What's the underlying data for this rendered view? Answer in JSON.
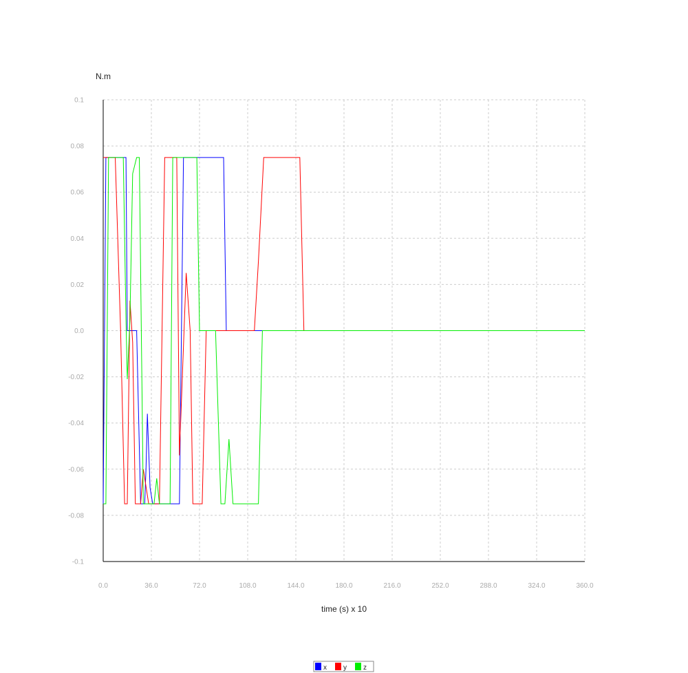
{
  "chart_data": {
    "type": "line",
    "title": "",
    "xlabel": "time (s) x 10",
    "ylabel": "N.m",
    "xlim": [
      0,
      360
    ],
    "ylim": [
      -0.1,
      0.1
    ],
    "x_ticks": [
      "0.0",
      "36.0",
      "72.0",
      "108.0",
      "144.0",
      "180.0",
      "216.0",
      "252.0",
      "288.0",
      "324.0",
      "360.0"
    ],
    "y_ticks": [
      "0.1",
      "0.08",
      "0.06",
      "0.04",
      "0.02",
      "0.0",
      "-0.02",
      "-0.04",
      "-0.06",
      "-0.08",
      "-0.1"
    ],
    "grid": true,
    "legend_position": "bottom-center",
    "series": [
      {
        "name": "x",
        "color": "#0000ff",
        "points": [
          [
            0,
            -0.075
          ],
          [
            2,
            0.075
          ],
          [
            17,
            0.075
          ],
          [
            18,
            0
          ],
          [
            25,
            0
          ],
          [
            28,
            -0.075
          ],
          [
            31,
            -0.075
          ],
          [
            32,
            -0.06
          ],
          [
            33,
            -0.036
          ],
          [
            35,
            -0.068
          ],
          [
            37,
            -0.075
          ],
          [
            57,
            -0.075
          ],
          [
            60,
            0.075
          ],
          [
            90,
            0.075
          ],
          [
            92,
            0
          ],
          [
            113,
            0
          ],
          [
            115,
            0
          ],
          [
            360,
            0
          ]
        ]
      },
      {
        "name": "y",
        "color": "#ff0000",
        "points": [
          [
            0,
            0.075
          ],
          [
            9,
            0.075
          ],
          [
            13,
            0
          ],
          [
            16,
            -0.075
          ],
          [
            18,
            -0.075
          ],
          [
            20,
            0.013
          ],
          [
            22,
            -0.005
          ],
          [
            24,
            -0.075
          ],
          [
            28,
            -0.075
          ],
          [
            30,
            -0.06
          ],
          [
            34,
            -0.075
          ],
          [
            42,
            -0.075
          ],
          [
            46,
            0.075
          ],
          [
            48,
            0.075
          ],
          [
            55,
            0.075
          ],
          [
            57,
            -0.054
          ],
          [
            62,
            0.025
          ],
          [
            65,
            0
          ],
          [
            67,
            -0.075
          ],
          [
            74,
            -0.075
          ],
          [
            77,
            0
          ],
          [
            113,
            0
          ],
          [
            116,
            0.03
          ],
          [
            120,
            0.075
          ],
          [
            147,
            0.075
          ],
          [
            150,
            0
          ],
          [
            360,
            0
          ]
        ]
      },
      {
        "name": "z",
        "color": "#00ee00",
        "points": [
          [
            0,
            -0.075
          ],
          [
            2,
            -0.075
          ],
          [
            4,
            0.075
          ],
          [
            15,
            0.075
          ],
          [
            17,
            0.005
          ],
          [
            18,
            -0.021
          ],
          [
            20,
            0.005
          ],
          [
            22,
            0.068
          ],
          [
            25,
            0.075
          ],
          [
            27,
            0.075
          ],
          [
            30,
            -0.075
          ],
          [
            33,
            -0.075
          ],
          [
            38,
            -0.075
          ],
          [
            40,
            -0.064
          ],
          [
            42,
            -0.075
          ],
          [
            50,
            -0.075
          ],
          [
            52,
            0.075
          ],
          [
            70,
            0.075
          ],
          [
            72,
            0
          ],
          [
            84,
            0
          ],
          [
            88,
            -0.075
          ],
          [
            91,
            -0.075
          ],
          [
            94,
            -0.047
          ],
          [
            97,
            -0.075
          ],
          [
            116,
            -0.075
          ],
          [
            119,
            0
          ],
          [
            360,
            0
          ]
        ]
      }
    ]
  }
}
